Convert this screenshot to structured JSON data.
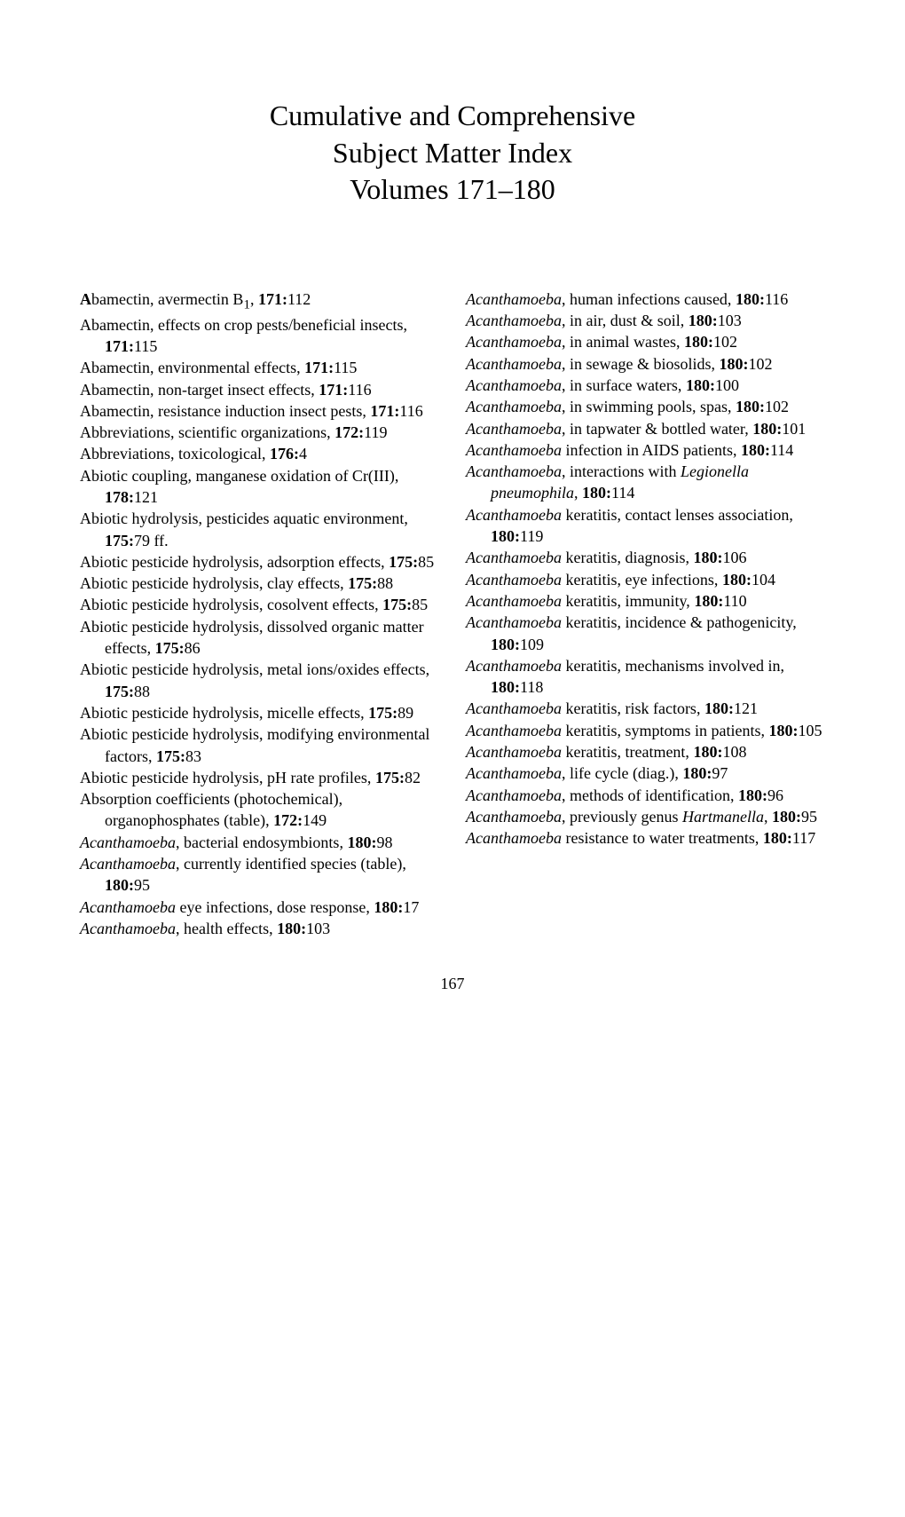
{
  "title_line1": "Cumulative and Comprehensive",
  "title_line2": "Subject Matter Index",
  "title_line3": "Volumes 171–180",
  "page_number": "167",
  "left": [
    {
      "segs": [
        {
          "t": "A",
          "b": true
        },
        {
          "t": "bamectin, avermectin B"
        },
        {
          "t": "1",
          "sub": true
        },
        {
          "t": ", "
        },
        {
          "t": "171:",
          "b": true
        },
        {
          "t": "112"
        }
      ]
    },
    {
      "segs": [
        {
          "t": "Abamectin, effects on crop pests/beneficial insects, "
        },
        {
          "t": "171:",
          "b": true
        },
        {
          "t": "115"
        }
      ]
    },
    {
      "segs": [
        {
          "t": "Abamectin, environmental effects, "
        },
        {
          "t": "171:",
          "b": true
        },
        {
          "t": "115"
        }
      ]
    },
    {
      "segs": [
        {
          "t": "Abamectin, non-target insect effects, "
        },
        {
          "t": "171:",
          "b": true
        },
        {
          "t": "116"
        }
      ]
    },
    {
      "segs": [
        {
          "t": "Abamectin, resistance induction insect pests, "
        },
        {
          "t": "171:",
          "b": true
        },
        {
          "t": "116"
        }
      ]
    },
    {
      "segs": [
        {
          "t": "Abbreviations, scientific organizations, "
        },
        {
          "t": "172:",
          "b": true
        },
        {
          "t": "119"
        }
      ]
    },
    {
      "segs": [
        {
          "t": "Abbreviations, toxicological, "
        },
        {
          "t": "176:",
          "b": true
        },
        {
          "t": "4"
        }
      ]
    },
    {
      "segs": [
        {
          "t": "Abiotic coupling, manganese oxidation of Cr(III), "
        },
        {
          "t": "178:",
          "b": true
        },
        {
          "t": "121"
        }
      ]
    },
    {
      "segs": [
        {
          "t": "Abiotic hydrolysis, pesticides aquatic environment, "
        },
        {
          "t": "175:",
          "b": true
        },
        {
          "t": "79 ff."
        }
      ]
    },
    {
      "segs": [
        {
          "t": "Abiotic pesticide hydrolysis, adsorption effects, "
        },
        {
          "t": "175:",
          "b": true
        },
        {
          "t": "85"
        }
      ]
    },
    {
      "segs": [
        {
          "t": "Abiotic pesticide hydrolysis, clay effects, "
        },
        {
          "t": "175:",
          "b": true
        },
        {
          "t": "88"
        }
      ]
    },
    {
      "segs": [
        {
          "t": "Abiotic pesticide hydrolysis, cosolvent effects, "
        },
        {
          "t": "175:",
          "b": true
        },
        {
          "t": "85"
        }
      ]
    },
    {
      "segs": [
        {
          "t": "Abiotic pesticide hydrolysis, dissolved organic matter effects, "
        },
        {
          "t": "175:",
          "b": true
        },
        {
          "t": "86"
        }
      ]
    },
    {
      "segs": [
        {
          "t": "Abiotic pesticide hydrolysis, metal ions/oxides effects, "
        },
        {
          "t": "175:",
          "b": true
        },
        {
          "t": "88"
        }
      ]
    },
    {
      "segs": [
        {
          "t": "Abiotic pesticide hydrolysis, micelle effects, "
        },
        {
          "t": "175:",
          "b": true
        },
        {
          "t": "89"
        }
      ]
    },
    {
      "segs": [
        {
          "t": "Abiotic pesticide hydrolysis, modifying environmental factors, "
        },
        {
          "t": "175:",
          "b": true
        },
        {
          "t": "83"
        }
      ]
    },
    {
      "segs": [
        {
          "t": "Abiotic pesticide hydrolysis, pH rate profiles, "
        },
        {
          "t": "175:",
          "b": true
        },
        {
          "t": "82"
        }
      ]
    },
    {
      "segs": [
        {
          "t": "Absorption coefficients (photochemical), organophosphates (table), "
        },
        {
          "t": "172:",
          "b": true
        },
        {
          "t": "149"
        }
      ]
    },
    {
      "segs": [
        {
          "t": "Acanthamoeba",
          "i": true
        },
        {
          "t": ", bacterial endosymbionts, "
        },
        {
          "t": "180:",
          "b": true
        },
        {
          "t": "98"
        }
      ]
    },
    {
      "segs": [
        {
          "t": "Acanthamoeba",
          "i": true
        },
        {
          "t": ", currently identified species (table), "
        },
        {
          "t": "180:",
          "b": true
        },
        {
          "t": "95"
        }
      ]
    },
    {
      "segs": [
        {
          "t": "Acanthamoeba",
          "i": true
        },
        {
          "t": " eye infections, dose response, "
        },
        {
          "t": "180:",
          "b": true
        },
        {
          "t": "17"
        }
      ]
    },
    {
      "segs": [
        {
          "t": "Acanthamoeba",
          "i": true
        },
        {
          "t": ", health effects, "
        },
        {
          "t": "180:",
          "b": true
        },
        {
          "t": "103"
        }
      ]
    }
  ],
  "right": [
    {
      "segs": [
        {
          "t": "Acanthamoeba",
          "i": true
        },
        {
          "t": ", human infections caused, "
        },
        {
          "t": "180:",
          "b": true
        },
        {
          "t": "116"
        }
      ]
    },
    {
      "segs": [
        {
          "t": "Acanthamoeba",
          "i": true
        },
        {
          "t": ", in air, dust & soil, "
        },
        {
          "t": "180:",
          "b": true
        },
        {
          "t": "103"
        }
      ]
    },
    {
      "segs": [
        {
          "t": "Acanthamoeba",
          "i": true
        },
        {
          "t": ", in animal wastes, "
        },
        {
          "t": "180:",
          "b": true
        },
        {
          "t": "102"
        }
      ]
    },
    {
      "segs": [
        {
          "t": "Acanthamoeba",
          "i": true
        },
        {
          "t": ", in sewage & biosolids, "
        },
        {
          "t": "180:",
          "b": true
        },
        {
          "t": "102"
        }
      ]
    },
    {
      "segs": [
        {
          "t": "Acanthamoeba",
          "i": true
        },
        {
          "t": ", in surface waters, "
        },
        {
          "t": "180:",
          "b": true
        },
        {
          "t": "100"
        }
      ]
    },
    {
      "segs": [
        {
          "t": "Acanthamoeba",
          "i": true
        },
        {
          "t": ", in swimming pools, spas, "
        },
        {
          "t": "180:",
          "b": true
        },
        {
          "t": "102"
        }
      ]
    },
    {
      "segs": [
        {
          "t": "Acanthamoeba",
          "i": true
        },
        {
          "t": ", in tapwater & bottled water, "
        },
        {
          "t": "180:",
          "b": true
        },
        {
          "t": "101"
        }
      ]
    },
    {
      "segs": [
        {
          "t": "Acanthamoeba",
          "i": true
        },
        {
          "t": " infection in AIDS patients, "
        },
        {
          "t": "180:",
          "b": true
        },
        {
          "t": "114"
        }
      ]
    },
    {
      "segs": [
        {
          "t": "Acanthamoeba",
          "i": true
        },
        {
          "t": ", interactions with "
        },
        {
          "t": "Legionella pneumophila",
          "i": true
        },
        {
          "t": ", "
        },
        {
          "t": "180:",
          "b": true
        },
        {
          "t": "114"
        }
      ]
    },
    {
      "segs": [
        {
          "t": "Acanthamoeba",
          "i": true
        },
        {
          "t": " keratitis, contact lenses association, "
        },
        {
          "t": "180:",
          "b": true
        },
        {
          "t": "119"
        }
      ]
    },
    {
      "segs": [
        {
          "t": "Acanthamoeba",
          "i": true
        },
        {
          "t": " keratitis, diagnosis, "
        },
        {
          "t": "180:",
          "b": true
        },
        {
          "t": "106"
        }
      ]
    },
    {
      "segs": [
        {
          "t": "Acanthamoeba",
          "i": true
        },
        {
          "t": " keratitis, eye infections, "
        },
        {
          "t": "180:",
          "b": true
        },
        {
          "t": "104"
        }
      ]
    },
    {
      "segs": [
        {
          "t": "Acanthamoeba",
          "i": true
        },
        {
          "t": " keratitis, immunity, "
        },
        {
          "t": "180:",
          "b": true
        },
        {
          "t": "110"
        }
      ]
    },
    {
      "segs": [
        {
          "t": "Acanthamoeba",
          "i": true
        },
        {
          "t": " keratitis, incidence & pathogenicity, "
        },
        {
          "t": "180:",
          "b": true
        },
        {
          "t": "109"
        }
      ]
    },
    {
      "segs": [
        {
          "t": "Acanthamoeba",
          "i": true
        },
        {
          "t": " keratitis, mechanisms involved in, "
        },
        {
          "t": "180:",
          "b": true
        },
        {
          "t": "118"
        }
      ]
    },
    {
      "segs": [
        {
          "t": "Acanthamoeba",
          "i": true
        },
        {
          "t": " keratitis, risk factors, "
        },
        {
          "t": "180:",
          "b": true
        },
        {
          "t": "121"
        }
      ]
    },
    {
      "segs": [
        {
          "t": "Acanthamoeba",
          "i": true
        },
        {
          "t": " keratitis, symptoms in patients, "
        },
        {
          "t": "180:",
          "b": true
        },
        {
          "t": "105"
        }
      ]
    },
    {
      "segs": [
        {
          "t": "Acanthamoeba",
          "i": true
        },
        {
          "t": " keratitis, treatment, "
        },
        {
          "t": "180:",
          "b": true
        },
        {
          "t": "108"
        }
      ]
    },
    {
      "segs": [
        {
          "t": "Acanthamoeba",
          "i": true
        },
        {
          "t": ", life cycle (diag.), "
        },
        {
          "t": "180:",
          "b": true
        },
        {
          "t": "97"
        }
      ]
    },
    {
      "segs": [
        {
          "t": "Acanthamoeba",
          "i": true
        },
        {
          "t": ", methods of identification, "
        },
        {
          "t": "180:",
          "b": true
        },
        {
          "t": "96"
        }
      ]
    },
    {
      "segs": [
        {
          "t": "Acanthamoeba",
          "i": true
        },
        {
          "t": ", previously genus "
        },
        {
          "t": "Hartmanella",
          "i": true
        },
        {
          "t": ", "
        },
        {
          "t": "180:",
          "b": true
        },
        {
          "t": "95"
        }
      ]
    },
    {
      "segs": [
        {
          "t": "Acanthamoeba",
          "i": true
        },
        {
          "t": " resistance to water treatments, "
        },
        {
          "t": "180:",
          "b": true
        },
        {
          "t": "117"
        }
      ]
    }
  ]
}
